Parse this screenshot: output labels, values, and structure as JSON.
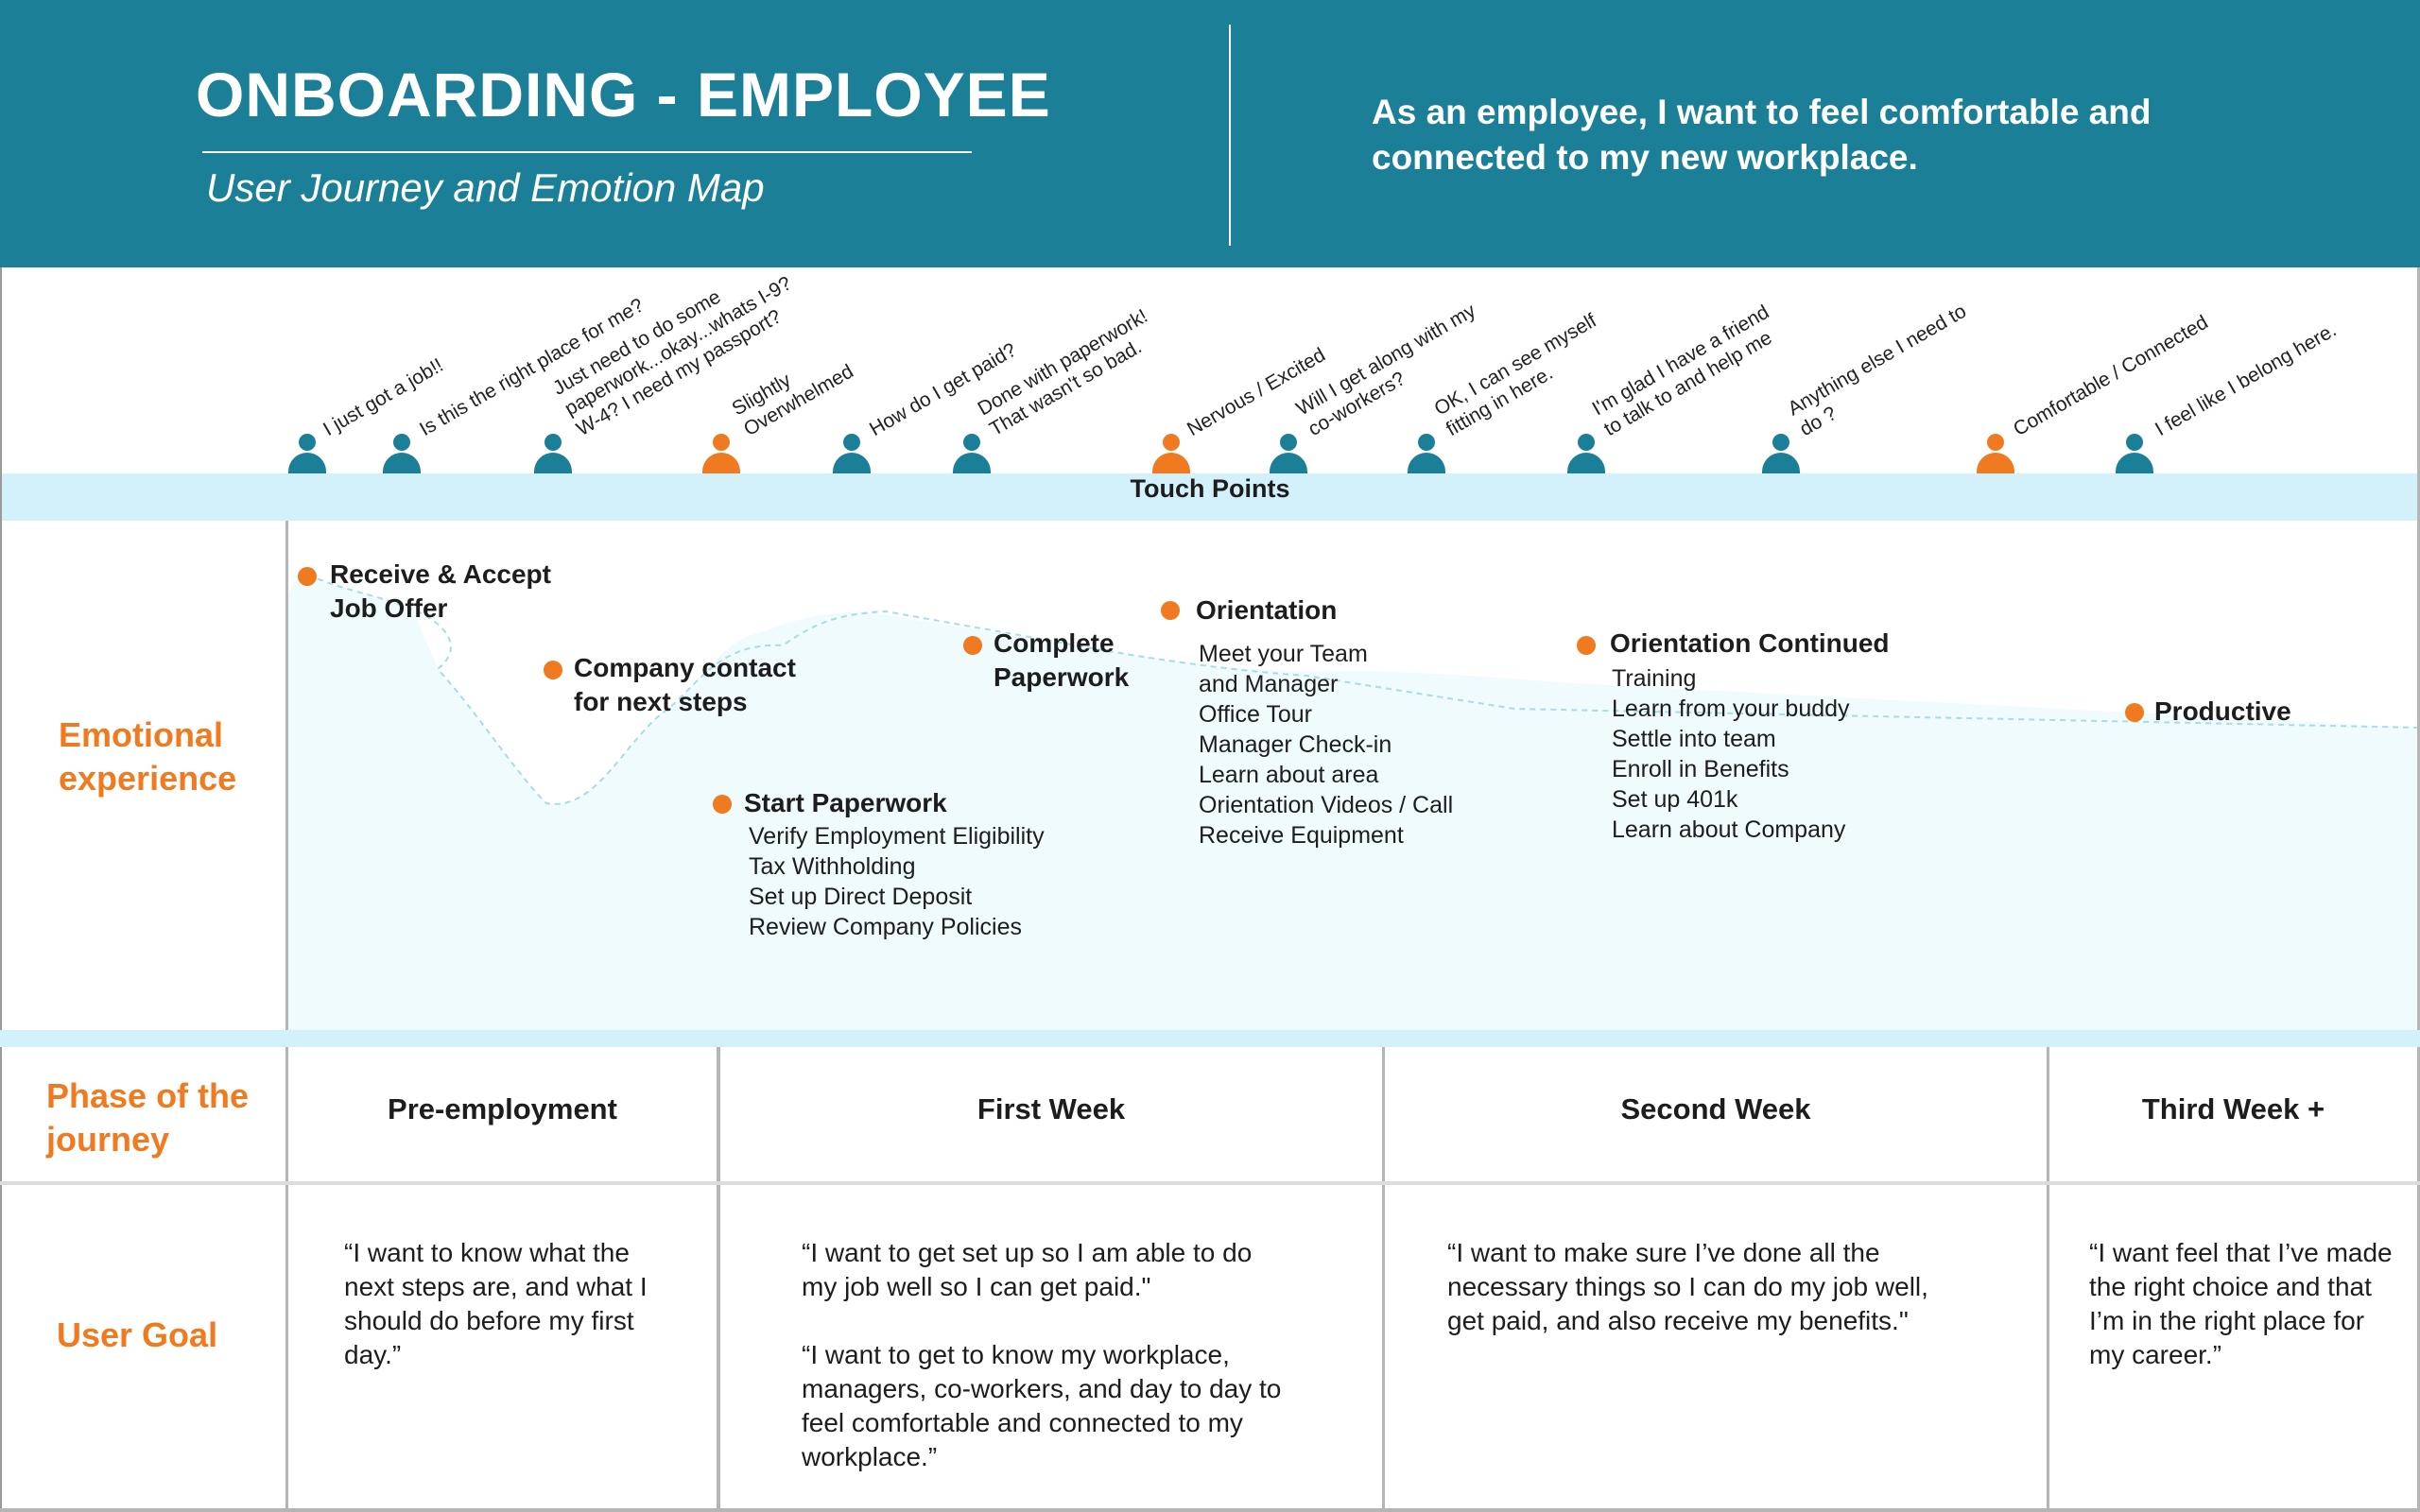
{
  "header": {
    "title": "ONBOARDING - EMPLOYEE",
    "subtitle": "User Journey and Emotion Map",
    "user_story": "As an employee, I want to feel comfortable and connected to my new workplace."
  },
  "thoughts": [
    {
      "text": "I just got a job!!",
      "persona": "teal"
    },
    {
      "text": "Is this the right place for me?",
      "persona": "teal"
    },
    {
      "text": "Just need to do some\npaperwork...okay...whats I-9?\nW-4? I need my passport?",
      "persona": "teal"
    },
    {
      "text": "Slightly\nOverwhelmed",
      "persona": "orange"
    },
    {
      "text": "How do I get paid?",
      "persona": "teal"
    },
    {
      "text": "Done with paperwork!\nThat wasn't so bad.",
      "persona": "teal"
    },
    {
      "text": "Nervous / Excited",
      "persona": "orange"
    },
    {
      "text": "Will I get along with my\nco-workers?",
      "persona": "teal"
    },
    {
      "text": "OK, I can see myself\nfitting in here.",
      "persona": "teal"
    },
    {
      "text": "I'm glad I have a friend\nto talk to and help me",
      "persona": "teal"
    },
    {
      "text": "Anything else I need to\ndo ?",
      "persona": "teal"
    },
    {
      "text": "Comfortable / Connected",
      "persona": "orange"
    },
    {
      "text": "I feel like I belong here.",
      "persona": "teal"
    }
  ],
  "touch_points_label": "Touch Points",
  "labels": {
    "emotional": "Emotional\nexperience",
    "phase": "Phase of the\njourney",
    "goal": "User Goal"
  },
  "nodes": [
    {
      "title": "Receive & Accept\nJob Offer",
      "items": []
    },
    {
      "title": "Company contact\nfor next steps",
      "items": []
    },
    {
      "title": "Start Paperwork",
      "items": [
        "Verify Employment Eligibility",
        "Tax Withholding",
        "Set up Direct Deposit",
        "Review Company Policies"
      ]
    },
    {
      "title": "Complete\nPaperwork",
      "items": []
    },
    {
      "title": "Orientation",
      "items": [
        "Meet your Team",
        "and Manager",
        "Office Tour",
        "Manager Check-in",
        "Learn about area",
        "Orientation Videos / Call",
        "Receive Equipment"
      ]
    },
    {
      "title": "Orientation Continued",
      "items": [
        "Training",
        "Learn from your buddy",
        "Settle into team",
        "Enroll in Benefits",
        "Set up 401k",
        "Learn about Company"
      ]
    },
    {
      "title": "Productive",
      "items": []
    }
  ],
  "phases": [
    "Pre-employment",
    "First Week",
    "Second Week",
    "Third Week +"
  ],
  "goals": [
    [
      "“I want to know what the next steps are, and what I should do before my first day.”"
    ],
    [
      "“I want to get set up so I am able to do my job well so I can get paid.\"",
      "“I want to get to know my workplace, managers, co-workers, and day to day to feel comfortable and connected to my workplace.”"
    ],
    [
      "“I want to make sure I’ve done all the necessary things so I can do my job well, get paid, and also receive my benefits.\""
    ],
    [
      "“I want feel that I’ve made the right choice and that I’m in the right place for my career.”"
    ]
  ],
  "colors": {
    "teal": "#1b7f98",
    "orange": "#f07a1f",
    "band": "#d3f1fb",
    "area": "#effbfd"
  }
}
